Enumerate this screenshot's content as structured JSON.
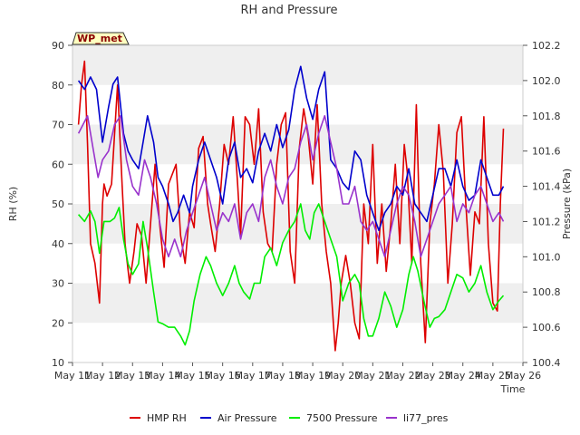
{
  "chart_data": {
    "type": "line",
    "title": "RH and Pressure",
    "xlabel": "Time",
    "ylabel_left": "RH (%)",
    "ylabel_right": "Pressure (kPa)",
    "badge": "WP_met",
    "x_ticks": [
      "May 11",
      "May 12",
      "May 13",
      "May 14",
      "May 15",
      "May 16",
      "May 17",
      "May 18",
      "May 19",
      "May 20",
      "May 21",
      "May 22",
      "May 23",
      "May 24",
      "May 25",
      "May 26"
    ],
    "x_range_days": [
      11,
      26
    ],
    "y_left_ticks": [
      "10",
      "20",
      "30",
      "40",
      "50",
      "60",
      "70",
      "80",
      "90"
    ],
    "y_left_range": [
      10,
      90
    ],
    "y_right_ticks": [
      "100.4",
      "100.6",
      "100.8",
      "101.0",
      "101.2",
      "101.4",
      "101.6",
      "101.8",
      "102.0",
      "102.2"
    ],
    "y_right_range": [
      100.4,
      102.2
    ],
    "grid": "horizontal bands",
    "legend_position": "bottom",
    "series": [
      {
        "name": "HMP RH",
        "axis": "left",
        "color": "#dd0000",
        "x": [
          11.2,
          11.3,
          11.4,
          11.5,
          11.6,
          11.75,
          11.9,
          12.0,
          12.05,
          12.15,
          12.3,
          12.5,
          12.65,
          12.75,
          12.9,
          13.05,
          13.15,
          13.3,
          13.45,
          13.6,
          13.75,
          13.9,
          14.05,
          14.2,
          14.3,
          14.45,
          14.6,
          14.75,
          14.9,
          15.05,
          15.2,
          15.35,
          15.5,
          15.6,
          15.75,
          15.9,
          16.05,
          16.2,
          16.35,
          16.5,
          16.6,
          16.75,
          16.9,
          17.05,
          17.2,
          17.35,
          17.5,
          17.65,
          17.8,
          17.95,
          18.1,
          18.25,
          18.4,
          18.55,
          18.7,
          18.85,
          19.0,
          19.15,
          19.3,
          19.45,
          19.6,
          19.75,
          19.85,
          19.95,
          20.1,
          20.25,
          20.4,
          20.55,
          20.7,
          20.85,
          21.0,
          21.15,
          21.3,
          21.45,
          21.6,
          21.75,
          21.9,
          22.05,
          22.15,
          22.3,
          22.45,
          22.6,
          22.75,
          22.9,
          23.05,
          23.2,
          23.35,
          23.5,
          23.65,
          23.8,
          23.95,
          24.1,
          24.25,
          24.4,
          24.55,
          24.7,
          24.85,
          25.0,
          25.15,
          25.25,
          25.35
        ],
        "values": [
          70,
          80,
          86,
          65,
          40,
          35,
          25,
          50,
          55,
          52,
          55,
          80,
          55,
          40,
          30,
          38,
          45,
          42,
          30,
          45,
          60,
          45,
          34,
          55,
          57,
          60,
          42,
          35,
          48,
          44,
          64,
          67,
          50,
          45,
          38,
          50,
          65,
          60,
          72,
          55,
          42,
          72,
          70,
          60,
          74,
          48,
          40,
          38,
          60,
          70,
          73,
          38,
          30,
          64,
          74,
          67,
          55,
          75,
          50,
          38,
          30,
          13,
          20,
          30,
          37,
          30,
          20,
          16,
          50,
          40,
          65,
          35,
          50,
          33,
          45,
          60,
          40,
          65,
          58,
          35,
          75,
          35,
          15,
          45,
          55,
          70,
          58,
          30,
          45,
          68,
          72,
          50,
          32,
          48,
          45,
          72,
          40,
          25,
          23,
          50,
          69
        ]
      },
      {
        "name": "Air Pressure",
        "axis": "right",
        "color": "#0000cc",
        "x": [
          11.2,
          11.4,
          11.6,
          11.8,
          12.0,
          12.2,
          12.35,
          12.5,
          12.7,
          12.85,
          13.0,
          13.2,
          13.35,
          13.5,
          13.7,
          13.85,
          14.0,
          14.2,
          14.35,
          14.5,
          14.7,
          14.9,
          15.0,
          15.2,
          15.4,
          15.6,
          15.8,
          16.0,
          16.2,
          16.4,
          16.6,
          16.8,
          17.0,
          17.2,
          17.4,
          17.6,
          17.8,
          18.0,
          18.2,
          18.4,
          18.6,
          18.8,
          19.0,
          19.2,
          19.4,
          19.6,
          19.8,
          20.0,
          20.2,
          20.4,
          20.6,
          20.8,
          21.0,
          21.2,
          21.4,
          21.6,
          21.8,
          22.0,
          22.2,
          22.4,
          22.6,
          22.8,
          23.0,
          23.2,
          23.4,
          23.6,
          23.8,
          24.0,
          24.2,
          24.4,
          24.6,
          24.8,
          25.0,
          25.2,
          25.35
        ],
        "values": [
          102.0,
          101.95,
          102.02,
          101.95,
          101.65,
          101.85,
          101.98,
          102.02,
          101.7,
          101.6,
          101.55,
          101.5,
          101.65,
          101.8,
          101.65,
          101.45,
          101.4,
          101.3,
          101.2,
          101.25,
          101.35,
          101.25,
          101.4,
          101.55,
          101.65,
          101.55,
          101.45,
          101.3,
          101.55,
          101.65,
          101.45,
          101.5,
          101.42,
          101.6,
          101.7,
          101.6,
          101.75,
          101.62,
          101.72,
          101.95,
          102.08,
          101.9,
          101.78,
          101.95,
          102.05,
          101.55,
          101.5,
          101.42,
          101.38,
          101.6,
          101.55,
          101.35,
          101.25,
          101.15,
          101.25,
          101.3,
          101.4,
          101.35,
          101.5,
          101.3,
          101.25,
          101.2,
          101.35,
          101.5,
          101.5,
          101.4,
          101.55,
          101.4,
          101.32,
          101.35,
          101.55,
          101.45,
          101.35,
          101.35,
          101.4
        ]
      },
      {
        "name": "7500 Pressure",
        "axis": "right",
        "color": "#00ee00",
        "x": [
          11.2,
          11.4,
          11.6,
          11.75,
          11.9,
          12.05,
          12.25,
          12.4,
          12.55,
          12.7,
          12.85,
          13.0,
          13.2,
          13.35,
          13.5,
          13.7,
          13.85,
          14.0,
          14.2,
          14.4,
          14.6,
          14.75,
          14.9,
          15.05,
          15.25,
          15.45,
          15.6,
          15.8,
          16.0,
          16.2,
          16.4,
          16.55,
          16.7,
          16.9,
          17.05,
          17.25,
          17.4,
          17.6,
          17.8,
          18.0,
          18.2,
          18.4,
          18.6,
          18.75,
          18.9,
          19.05,
          19.2,
          19.4,
          19.6,
          19.8,
          20.0,
          20.2,
          20.4,
          20.55,
          20.7,
          20.85,
          21.0,
          21.2,
          21.4,
          21.6,
          21.8,
          22.0,
          22.2,
          22.35,
          22.5,
          22.7,
          22.9,
          23.05,
          23.2,
          23.4,
          23.6,
          23.8,
          24.0,
          24.2,
          24.4,
          24.6,
          24.8,
          25.0,
          25.2,
          25.35
        ],
        "values": [
          101.24,
          101.2,
          101.26,
          101.2,
          101.02,
          101.2,
          101.2,
          101.22,
          101.28,
          101.1,
          100.96,
          100.9,
          100.96,
          101.2,
          101.05,
          100.8,
          100.63,
          100.62,
          100.6,
          100.6,
          100.55,
          100.5,
          100.58,
          100.75,
          100.9,
          101.0,
          100.95,
          100.85,
          100.78,
          100.85,
          100.95,
          100.85,
          100.8,
          100.76,
          100.85,
          100.85,
          101.0,
          101.05,
          100.95,
          101.08,
          101.15,
          101.2,
          101.3,
          101.15,
          101.1,
          101.25,
          101.3,
          101.2,
          101.1,
          101.0,
          100.75,
          100.85,
          100.9,
          100.85,
          100.65,
          100.55,
          100.55,
          100.65,
          100.8,
          100.72,
          100.6,
          100.7,
          100.9,
          101.0,
          100.92,
          100.75,
          100.6,
          100.65,
          100.66,
          100.7,
          100.8,
          100.9,
          100.88,
          100.8,
          100.85,
          100.95,
          100.8,
          100.7,
          100.75,
          100.78
        ]
      },
      {
        "name": "li77_pres",
        "axis": "right",
        "color": "#9933cc",
        "x": [
          11.2,
          11.5,
          11.7,
          11.85,
          12.0,
          12.2,
          12.4,
          12.6,
          12.8,
          13.0,
          13.2,
          13.4,
          13.6,
          13.8,
          14.0,
          14.2,
          14.4,
          14.6,
          14.8,
          15.0,
          15.2,
          15.4,
          15.6,
          15.8,
          16.0,
          16.2,
          16.4,
          16.6,
          16.8,
          17.0,
          17.2,
          17.4,
          17.6,
          17.8,
          18.0,
          18.2,
          18.4,
          18.6,
          18.8,
          19.0,
          19.2,
          19.4,
          19.6,
          19.8,
          20.0,
          20.2,
          20.4,
          20.6,
          20.8,
          21.0,
          21.2,
          21.4,
          21.6,
          21.8,
          22.0,
          22.2,
          22.4,
          22.6,
          22.8,
          23.0,
          23.2,
          23.4,
          23.6,
          23.8,
          24.0,
          24.2,
          24.4,
          24.6,
          24.8,
          25.0,
          25.2,
          25.35
        ],
        "values": [
          101.7,
          101.8,
          101.6,
          101.45,
          101.55,
          101.6,
          101.75,
          101.8,
          101.55,
          101.4,
          101.35,
          101.55,
          101.45,
          101.3,
          101.1,
          101.0,
          101.1,
          101.0,
          101.15,
          101.25,
          101.35,
          101.45,
          101.3,
          101.15,
          101.25,
          101.2,
          101.3,
          101.1,
          101.25,
          101.3,
          101.2,
          101.45,
          101.55,
          101.4,
          101.3,
          101.45,
          101.5,
          101.65,
          101.75,
          101.55,
          101.7,
          101.8,
          101.65,
          101.5,
          101.3,
          101.3,
          101.4,
          101.2,
          101.15,
          101.2,
          101.1,
          101.0,
          101.15,
          101.3,
          101.4,
          101.35,
          101.2,
          101.0,
          101.1,
          101.2,
          101.3,
          101.35,
          101.4,
          101.2,
          101.3,
          101.25,
          101.35,
          101.4,
          101.3,
          101.2,
          101.25,
          101.2
        ]
      }
    ]
  }
}
